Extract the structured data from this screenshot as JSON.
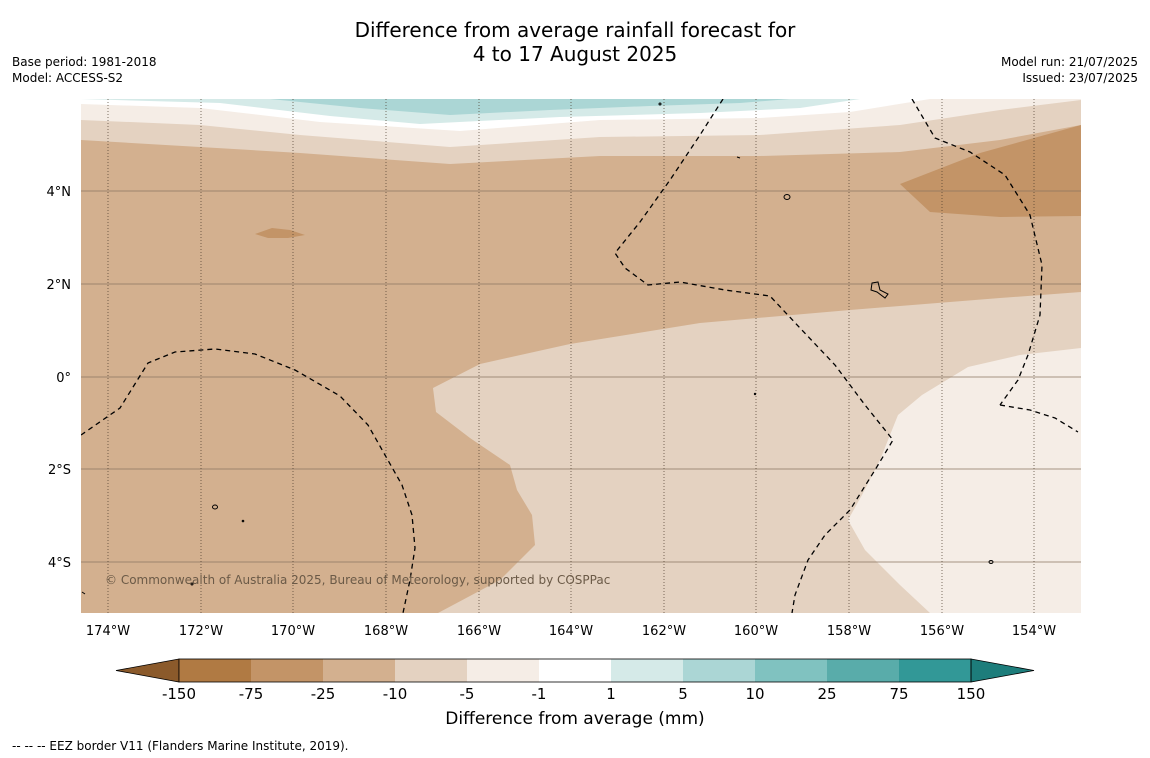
{
  "title": {
    "line1": "Difference from average rainfall forecast for",
    "line2": "4 to 17 August 2025"
  },
  "meta_left": {
    "base_period": "Base period: 1981-2018",
    "model": "Model: ACCESS-S2"
  },
  "meta_right": {
    "model_run": "Model run: 21/07/2025",
    "issued": "Issued: 23/07/2025"
  },
  "map": {
    "lat_labels": [
      "4°N",
      "2°N",
      "0°",
      "2°S",
      "4°S"
    ],
    "lon_labels": [
      "174°W",
      "172°W",
      "170°W",
      "168°W",
      "166°W",
      "164°W",
      "162°W",
      "160°W",
      "158°W",
      "156°W",
      "154°W"
    ],
    "copyright": "© Commonwealth of Australia 2025, Bureau of Meteorology, supported by COSPPac"
  },
  "colorbar": {
    "colors": [
      "#8b5a2b",
      "#b07a43",
      "#c39467",
      "#d3b08f",
      "#e4d2c1",
      "#f5ede6",
      "#ffffff",
      "#d5eae8",
      "#abd6d5",
      "#80c2c0",
      "#59acaa",
      "#329897",
      "#1d7d7b"
    ],
    "tick_labels": [
      "-150",
      "-75",
      "-25",
      "-10",
      "-5",
      "-1",
      "1",
      "5",
      "10",
      "25",
      "75",
      "150"
    ],
    "label": "Difference from average (mm)"
  },
  "footer": {
    "eez_note": "--  --  -- EEZ border V11 (Flanders Marine Institute, 2019)."
  }
}
